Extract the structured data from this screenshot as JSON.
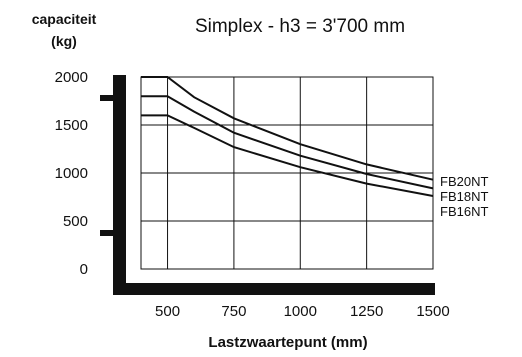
{
  "chart_data": {
    "type": "line",
    "title": "Simplex - h3 = 3'700 mm",
    "ylabel_line1": "capaciteit",
    "ylabel_line2": "(kg)",
    "xlabel": "Lastzwaartepunt (mm)",
    "xlim": [
      400,
      1500
    ],
    "ylim": [
      0,
      2000
    ],
    "x_ticks": [
      "500",
      "750",
      "1000",
      "1250",
      "1500"
    ],
    "y_ticks": [
      "0",
      "500",
      "1000",
      "1500",
      "2000"
    ],
    "grid": true,
    "series": [
      {
        "name": "FB20NT",
        "x": [
          400,
          500,
          600,
          750,
          1000,
          1250,
          1500
        ],
        "y": [
          2000,
          2000,
          1790,
          1570,
          1300,
          1090,
          930
        ]
      },
      {
        "name": "FB18NT",
        "x": [
          400,
          500,
          600,
          750,
          1000,
          1250,
          1500
        ],
        "y": [
          1800,
          1800,
          1640,
          1420,
          1180,
          990,
          840
        ]
      },
      {
        "name": "FB16NT",
        "x": [
          400,
          500,
          600,
          750,
          1000,
          1250,
          1500
        ],
        "y": [
          1600,
          1600,
          1470,
          1270,
          1060,
          890,
          760
        ]
      }
    ]
  }
}
